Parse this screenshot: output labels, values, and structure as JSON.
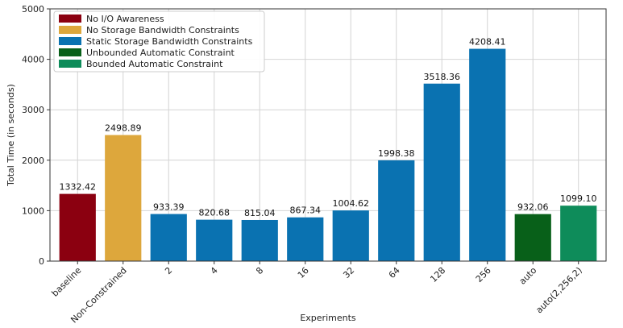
{
  "chart_data": {
    "type": "bar",
    "xlabel": "Experiments",
    "ylabel": "Total Time (in seconds)",
    "ylim": [
      0,
      5000
    ],
    "yticks": [
      0,
      1000,
      2000,
      3000,
      4000,
      5000
    ],
    "grid": true,
    "legend_position": "top-left",
    "categories": [
      "baseline",
      "Non-Constrained",
      "2",
      "4",
      "8",
      "16",
      "32",
      "64",
      "128",
      "256",
      "auto",
      "auto(2,256,2)"
    ],
    "values": [
      1332.42,
      2498.89,
      933.39,
      820.68,
      815.04,
      867.34,
      1004.62,
      1998.38,
      3518.36,
      4208.41,
      932.06,
      1099.1
    ],
    "value_labels": [
      "1332.42",
      "2498.89",
      "933.39",
      "820.68",
      "815.04",
      "867.34",
      "1004.62",
      "1998.38",
      "3518.36",
      "4208.41",
      "932.06",
      "1099.10"
    ],
    "bar_groups": [
      0,
      1,
      2,
      2,
      2,
      2,
      2,
      2,
      2,
      2,
      3,
      4
    ],
    "legend": [
      {
        "label": "No I/O Awareness",
        "color": "#8b0010"
      },
      {
        "label": "No Storage Bandwidth Constraints",
        "color": "#dda73c"
      },
      {
        "label": "Static Storage Bandwidth Constraints",
        "color": "#0a72b1"
      },
      {
        "label": "Unbounded Automatic Constraint",
        "color": "#086019"
      },
      {
        "label": "Bounded Automatic Constraint",
        "color": "#0e8c5a"
      }
    ]
  }
}
